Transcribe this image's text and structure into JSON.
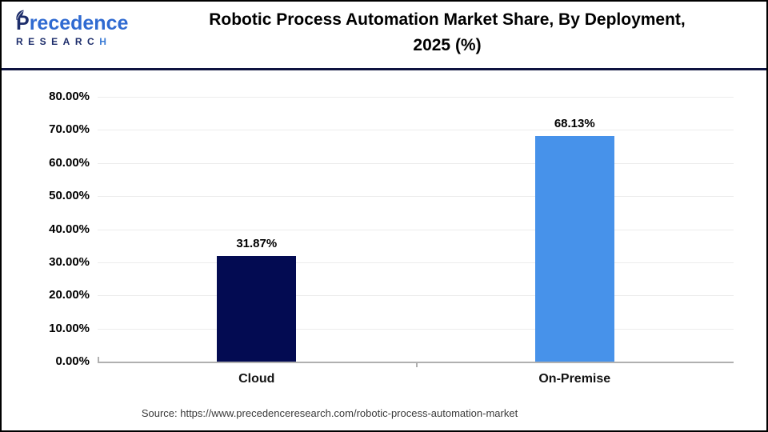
{
  "header": {
    "logo": {
      "brand_top": "Precedence",
      "brand_bottom": "RESEARCH"
    },
    "title_line1": "Robotic Process Automation Market Share, By Deployment,",
    "title_line2": "2025 (%)"
  },
  "chart_data": {
    "type": "bar",
    "title": "Robotic Process Automation Market Share, By Deployment, 2025 (%)",
    "categories": [
      "Cloud",
      "On-Premise"
    ],
    "values": [
      31.87,
      68.13
    ],
    "value_labels": [
      "31.87%",
      "68.13%"
    ],
    "bar_colors": [
      "#030b52",
      "#4792ea"
    ],
    "xlabel": "",
    "ylabel": "",
    "ylim": [
      0,
      80
    ],
    "ytick_step": 10,
    "ytick_labels": [
      "0.00%",
      "10.00%",
      "20.00%",
      "30.00%",
      "40.00%",
      "50.00%",
      "60.00%",
      "70.00%",
      "80.00%"
    ],
    "grid": true,
    "legend": "none"
  },
  "footer": {
    "source": "Source: https://www.precedenceresearch.com/robotic-process-automation-market"
  },
  "colors": {
    "header_rule": "#0e1340",
    "outer_border": "#000000",
    "gridline": "#ebebeb",
    "axis_line": "#b0b0b0",
    "logo_navy": "#1d2d6b",
    "logo_blue": "#2f6ad1"
  }
}
